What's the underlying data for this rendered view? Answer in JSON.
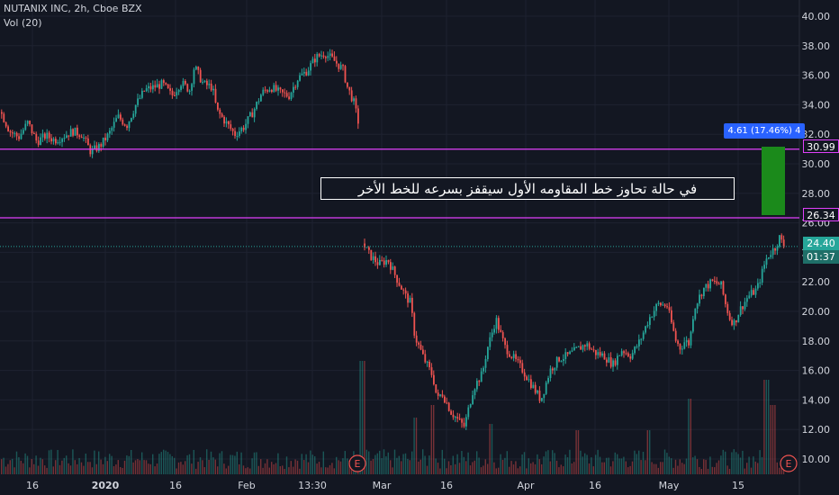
{
  "header": {
    "symbol_line": "NUTANIX INC, 2h, Cboe BZX",
    "volume_line": "Vol (20)"
  },
  "annotation": {
    "text": "في حالة تحاوز خط المقاومه الأول سيقفز بسرعه للخط الأخر"
  },
  "measure": {
    "label": "4.61 (17.46%) 4"
  },
  "levels": {
    "resistance_1": "26.34",
    "resistance_2": "30.99",
    "last_price": "24.40",
    "countdown": "01:37"
  },
  "colors": {
    "background": "#131722",
    "up": "#26a69a",
    "down": "#ef5350",
    "level_line": "#e040fb",
    "measure_box": "#1b8a1b",
    "grid": "#1e2230",
    "axis_text": "#d1d4dc"
  },
  "chart_data": {
    "type": "candlestick",
    "title": "NUTANIX INC, 2h, Cboe BZX",
    "y_axis": {
      "ticks": [
        "40.00",
        "38.00",
        "36.00",
        "34.00",
        "32.00",
        "30.00",
        "28.00",
        "26.00",
        "24.00",
        "22.00",
        "20.00",
        "18.00",
        "16.00",
        "14.00",
        "12.00",
        "10.00"
      ],
      "ylim": [
        9.5,
        40.5
      ]
    },
    "x_axis": {
      "ticks": [
        "16",
        "2020",
        "16",
        "Feb",
        "13:30",
        "Mar",
        "16",
        "Apr",
        "16",
        "May",
        "15"
      ]
    },
    "earnings_markers": [
      "E",
      "E"
    ],
    "horizontal_levels": [
      26.34,
      30.99
    ],
    "last_price": 24.4,
    "price_path": [
      [
        0,
        33.5
      ],
      [
        10,
        32.2
      ],
      [
        20,
        31.8
      ],
      [
        30,
        32.8
      ],
      [
        40,
        31.5
      ],
      [
        50,
        31.9
      ],
      [
        60,
        31.6
      ],
      [
        70,
        31.9
      ],
      [
        80,
        32.2
      ],
      [
        90,
        32.0
      ],
      [
        100,
        30.8
      ],
      [
        110,
        31.2
      ],
      [
        120,
        32.0
      ],
      [
        130,
        33.2
      ],
      [
        140,
        32.6
      ],
      [
        150,
        34.0
      ],
      [
        160,
        35.0
      ],
      [
        170,
        35.2
      ],
      [
        180,
        35.4
      ],
      [
        190,
        34.6
      ],
      [
        200,
        35.5
      ],
      [
        210,
        35.0
      ],
      [
        215,
        36.6
      ],
      [
        225,
        35.4
      ],
      [
        235,
        35.2
      ],
      [
        240,
        33.6
      ],
      [
        250,
        32.8
      ],
      [
        260,
        32.0
      ],
      [
        270,
        32.5
      ],
      [
        280,
        33.5
      ],
      [
        290,
        34.8
      ],
      [
        300,
        35.2
      ],
      [
        310,
        34.8
      ],
      [
        320,
        34.6
      ],
      [
        330,
        35.8
      ],
      [
        340,
        36.3
      ],
      [
        350,
        37.2
      ],
      [
        360,
        37.5
      ],
      [
        370,
        37.0
      ],
      [
        380,
        36.4
      ],
      [
        385,
        35.2
      ],
      [
        392,
        34.2
      ],
      [
        398,
        32.6
      ],
      [
        402,
        24.6
      ],
      [
        410,
        23.8
      ],
      [
        420,
        23.2
      ],
      [
        430,
        23.5
      ],
      [
        440,
        22.2
      ],
      [
        450,
        21.0
      ],
      [
        455,
        20.6
      ],
      [
        460,
        18.3
      ],
      [
        470,
        16.8
      ],
      [
        480,
        15.6
      ],
      [
        485,
        14.0
      ],
      [
        490,
        14.5
      ],
      [
        500,
        13.2
      ],
      [
        510,
        12.5
      ],
      [
        515,
        12.2
      ],
      [
        520,
        13.5
      ],
      [
        525,
        14.8
      ],
      [
        535,
        15.8
      ],
      [
        540,
        17.4
      ],
      [
        545,
        18.4
      ],
      [
        550,
        19.5
      ],
      [
        555,
        18.5
      ],
      [
        560,
        17.6
      ],
      [
        570,
        16.8
      ],
      [
        580,
        16.0
      ],
      [
        590,
        15.0
      ],
      [
        600,
        14.0
      ],
      [
        610,
        16.0
      ],
      [
        620,
        16.8
      ],
      [
        630,
        17.0
      ],
      [
        640,
        17.4
      ],
      [
        650,
        17.8
      ],
      [
        660,
        17.2
      ],
      [
        670,
        17.0
      ],
      [
        680,
        16.4
      ],
      [
        690,
        17.4
      ],
      [
        700,
        17.0
      ],
      [
        710,
        18.0
      ],
      [
        720,
        19.5
      ],
      [
        730,
        20.5
      ],
      [
        740,
        20.4
      ],
      [
        745,
        19.2
      ],
      [
        750,
        18.0
      ],
      [
        755,
        17.5
      ],
      [
        760,
        18.0
      ],
      [
        765,
        17.8
      ],
      [
        770,
        20.2
      ],
      [
        780,
        21.5
      ],
      [
        790,
        22.0
      ],
      [
        800,
        21.8
      ],
      [
        805,
        20.5
      ],
      [
        810,
        19.5
      ],
      [
        815,
        19.2
      ],
      [
        820,
        20.0
      ],
      [
        830,
        21.0
      ],
      [
        840,
        21.5
      ],
      [
        845,
        22.5
      ],
      [
        850,
        23.5
      ],
      [
        855,
        24.0
      ],
      [
        860,
        24.3
      ],
      [
        865,
        25.0
      ],
      [
        870,
        24.4
      ]
    ],
    "volume_spikes": [
      [
        402,
        0.9
      ],
      [
        460,
        0.45
      ],
      [
        480,
        0.55
      ],
      [
        545,
        0.4
      ],
      [
        640,
        0.35
      ],
      [
        720,
        0.35
      ],
      [
        765,
        0.6
      ],
      [
        850,
        0.75
      ],
      [
        858,
        0.55
      ]
    ]
  }
}
